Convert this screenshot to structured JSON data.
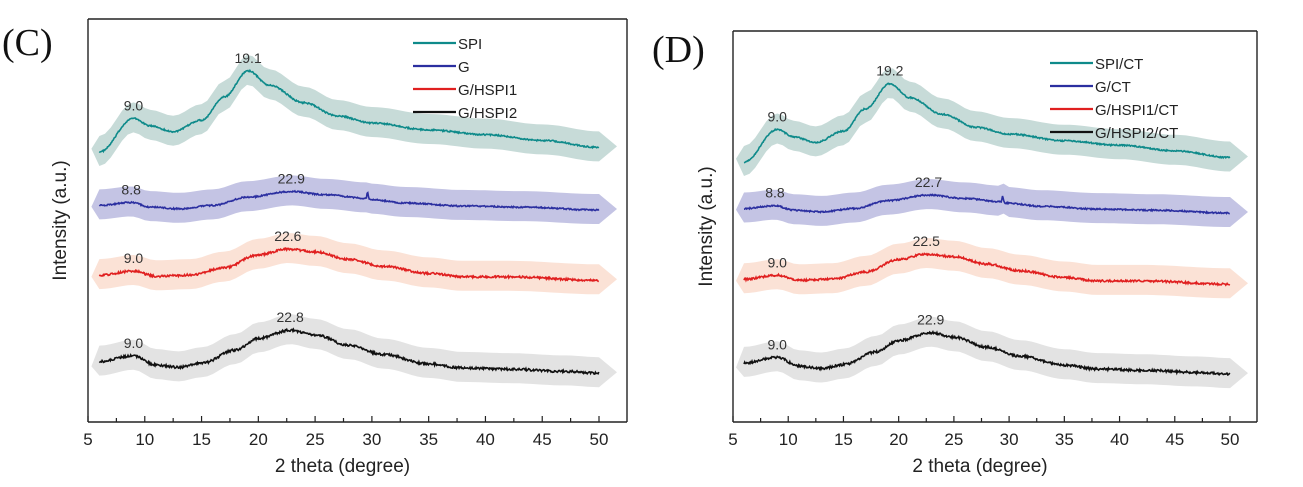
{
  "chart_data": [
    {
      "panel": "(C)",
      "type": "line",
      "xlabel": "2 theta (degree)",
      "ylabel": "Intensity (a.u.)",
      "xlim": [
        5,
        52
      ],
      "xticks": [
        5,
        10,
        15,
        20,
        25,
        30,
        35,
        40,
        45,
        50
      ],
      "yticks": [],
      "grid": false,
      "legend_position": "top-right",
      "series": [
        {
          "name": "SPI",
          "color": "#0e8a8a",
          "band_color": "#c7dbd8",
          "offset": 3,
          "peaks": [
            {
              "x": 9.0,
              "label": "9.0",
              "h": 0.55,
              "w": 1.6
            },
            {
              "x": 19.1,
              "label": "19.1",
              "h": 1.35,
              "w": 2.2
            }
          ],
          "baseline": {
            "start": 0.0,
            "min_at": 12.0,
            "tail": 0.0
          },
          "shape": [
            [
              6,
              0.0
            ],
            [
              9,
              0.58
            ],
            [
              10.5,
              0.45
            ],
            [
              12.5,
              0.35
            ],
            [
              15,
              0.55
            ],
            [
              17,
              0.95
            ],
            [
              19.1,
              1.4
            ],
            [
              21,
              1.15
            ],
            [
              24,
              0.85
            ],
            [
              27,
              0.62
            ],
            [
              30,
              0.5
            ],
            [
              35,
              0.38
            ],
            [
              40,
              0.3
            ],
            [
              45,
              0.2
            ],
            [
              50,
              0.08
            ]
          ],
          "noise": 0.012
        },
        {
          "name": "G",
          "color": "#2b2fa0",
          "band_color": "#c4c4e4",
          "offset": 2,
          "peaks": [
            {
              "x": 8.8,
              "label": "8.8"
            },
            {
              "x": 22.9,
              "label": "22.9"
            }
          ],
          "shape": [
            [
              6,
              0.08
            ],
            [
              8.8,
              0.13
            ],
            [
              10.5,
              0.05
            ],
            [
              13,
              0.02
            ],
            [
              16,
              0.08
            ],
            [
              19,
              0.22
            ],
            [
              22.9,
              0.32
            ],
            [
              26,
              0.26
            ],
            [
              29.5,
              0.2
            ],
            [
              29.6,
              0.3
            ],
            [
              29.8,
              0.18
            ],
            [
              33,
              0.12
            ],
            [
              38,
              0.07
            ],
            [
              43,
              0.05
            ],
            [
              50,
              0.0
            ]
          ],
          "noise": 0.012
        },
        {
          "name": "G/HSPI1",
          "color": "#e02020",
          "band_color": "#fbe2d6",
          "offset": 1,
          "peaks": [
            {
              "x": 9.0,
              "label": "9.0"
            },
            {
              "x": 22.6,
              "label": "22.6"
            }
          ],
          "shape": [
            [
              6,
              0.05
            ],
            [
              9,
              0.12
            ],
            [
              11,
              0.03
            ],
            [
              14,
              0.05
            ],
            [
              17,
              0.18
            ],
            [
              20,
              0.4
            ],
            [
              22.6,
              0.5
            ],
            [
              25,
              0.45
            ],
            [
              28,
              0.32
            ],
            [
              31,
              0.2
            ],
            [
              35,
              0.08
            ],
            [
              38,
              0.02
            ],
            [
              42,
              0.02
            ],
            [
              50,
              -0.04
            ]
          ],
          "noise": 0.018
        },
        {
          "name": "G/HSPI2",
          "color": "#111111",
          "band_color": "#e3e3e3",
          "offset": 0,
          "peaks": [
            {
              "x": 9.0,
              "label": "9.0"
            },
            {
              "x": 22.8,
              "label": "22.8"
            }
          ],
          "shape": [
            [
              6,
              0.18
            ],
            [
              9,
              0.28
            ],
            [
              11,
              0.12
            ],
            [
              13,
              0.08
            ],
            [
              15,
              0.15
            ],
            [
              18,
              0.38
            ],
            [
              20,
              0.58
            ],
            [
              22.8,
              0.72
            ],
            [
              25,
              0.64
            ],
            [
              28,
              0.46
            ],
            [
              31,
              0.3
            ],
            [
              35,
              0.14
            ],
            [
              38,
              0.07
            ],
            [
              42,
              0.05
            ],
            [
              47,
              0.01
            ],
            [
              50,
              -0.02
            ]
          ],
          "noise": 0.02
        }
      ]
    },
    {
      "panel": "(D)",
      "type": "line",
      "xlabel": "2 theta (degree)",
      "ylabel": "Intensity (a.u.)",
      "xlim": [
        5,
        52
      ],
      "xticks": [
        5,
        10,
        15,
        20,
        25,
        30,
        35,
        40,
        45,
        50
      ],
      "yticks": [],
      "grid": false,
      "legend_position": "top-right",
      "series": [
        {
          "name": "SPI/CT",
          "color": "#0e8a8a",
          "band_color": "#c7dbd8",
          "offset": 3,
          "peaks": [
            {
              "x": 9.0,
              "label": "9.0"
            },
            {
              "x": 19.2,
              "label": "19.2"
            }
          ],
          "shape": [
            [
              6,
              0.0
            ],
            [
              9,
              0.58
            ],
            [
              10.5,
              0.45
            ],
            [
              12.5,
              0.35
            ],
            [
              15,
              0.55
            ],
            [
              17,
              0.95
            ],
            [
              19.2,
              1.4
            ],
            [
              21,
              1.15
            ],
            [
              24,
              0.85
            ],
            [
              27,
              0.62
            ],
            [
              30,
              0.5
            ],
            [
              35,
              0.38
            ],
            [
              40,
              0.3
            ],
            [
              45,
              0.2
            ],
            [
              50,
              0.08
            ]
          ],
          "noise": 0.012
        },
        {
          "name": "G/CT",
          "color": "#2b2fa0",
          "band_color": "#c4c4e4",
          "offset": 2,
          "peaks": [
            {
              "x": 8.8,
              "label": "8.8"
            },
            {
              "x": 22.7,
              "label": "22.7"
            }
          ],
          "shape": [
            [
              6,
              0.08
            ],
            [
              8.8,
              0.13
            ],
            [
              10.5,
              0.05
            ],
            [
              13,
              0.02
            ],
            [
              16,
              0.08
            ],
            [
              19,
              0.22
            ],
            [
              22.7,
              0.32
            ],
            [
              26,
              0.26
            ],
            [
              29.3,
              0.2
            ],
            [
              29.4,
              0.3
            ],
            [
              29.6,
              0.18
            ],
            [
              33,
              0.12
            ],
            [
              38,
              0.07
            ],
            [
              43,
              0.05
            ],
            [
              50,
              0.0
            ]
          ],
          "noise": 0.012
        },
        {
          "name": "G/HSPI1/CT",
          "color": "#e02020",
          "band_color": "#fbe2d6",
          "offset": 1,
          "peaks": [
            {
              "x": 9.0,
              "label": "9.0"
            },
            {
              "x": 22.5,
              "label": "22.5"
            }
          ],
          "shape": [
            [
              6,
              0.05
            ],
            [
              9,
              0.12
            ],
            [
              11,
              0.03
            ],
            [
              14,
              0.05
            ],
            [
              17,
              0.18
            ],
            [
              20,
              0.4
            ],
            [
              22.5,
              0.5
            ],
            [
              25,
              0.45
            ],
            [
              28,
              0.32
            ],
            [
              31,
              0.2
            ],
            [
              35,
              0.08
            ],
            [
              38,
              0.02
            ],
            [
              42,
              0.02
            ],
            [
              50,
              -0.04
            ]
          ],
          "noise": 0.018
        },
        {
          "name": "G/HSPI2/CT",
          "color": "#111111",
          "band_color": "#e3e3e3",
          "offset": 0,
          "peaks": [
            {
              "x": 9.0,
              "label": "9.0"
            },
            {
              "x": 22.9,
              "label": "22.9"
            }
          ],
          "shape": [
            [
              6,
              0.18
            ],
            [
              9,
              0.28
            ],
            [
              11,
              0.12
            ],
            [
              13,
              0.08
            ],
            [
              15,
              0.15
            ],
            [
              18,
              0.38
            ],
            [
              20,
              0.58
            ],
            [
              22.9,
              0.72
            ],
            [
              25,
              0.64
            ],
            [
              28,
              0.46
            ],
            [
              31,
              0.3
            ],
            [
              35,
              0.14
            ],
            [
              38,
              0.07
            ],
            [
              42,
              0.05
            ],
            [
              47,
              0.01
            ],
            [
              50,
              -0.02
            ]
          ],
          "noise": 0.02
        }
      ]
    }
  ]
}
